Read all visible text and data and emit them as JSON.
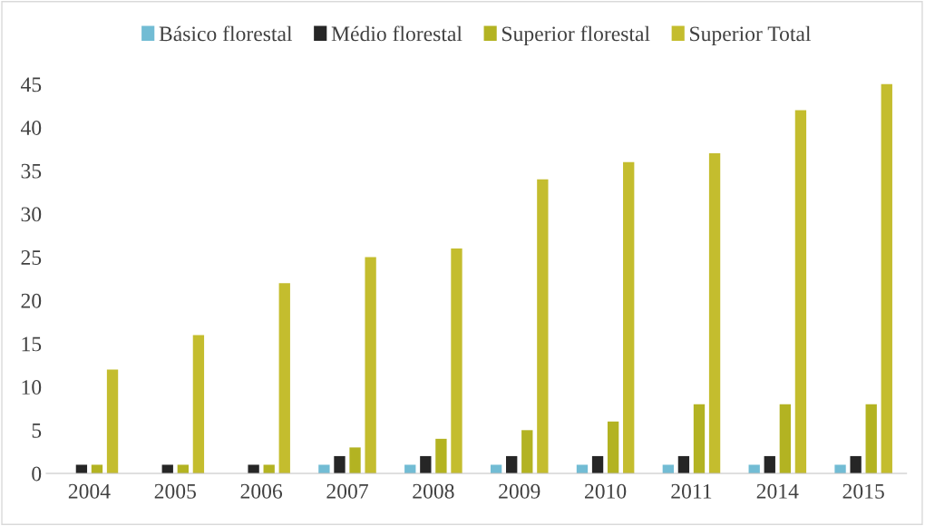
{
  "chart_data": {
    "type": "bar",
    "categories": [
      "2004",
      "2005",
      "2006",
      "2007",
      "2008",
      "2009",
      "2010",
      "2011",
      "2014",
      "2015"
    ],
    "series": [
      {
        "name": "Básico florestal",
        "color": "#72bcd4",
        "values": [
          0,
          0,
          0,
          1,
          1,
          1,
          1,
          1,
          1,
          1
        ]
      },
      {
        "name": "Médio florestal",
        "color": "#262626",
        "values": [
          1,
          1,
          1,
          2,
          2,
          2,
          2,
          2,
          2,
          2
        ]
      },
      {
        "name": "Superior florestal",
        "color": "#b3b322",
        "values": [
          1,
          1,
          1,
          3,
          4,
          5,
          6,
          8,
          8,
          8
        ]
      },
      {
        "name": "Superior Total",
        "color": "#c4bd2e",
        "values": [
          12,
          16,
          22,
          25,
          26,
          34,
          36,
          37,
          42,
          45
        ]
      }
    ],
    "ylim": [
      0,
      45
    ],
    "yticks": [
      0,
      5,
      10,
      15,
      20,
      25,
      30,
      35,
      40,
      45
    ],
    "grid": false,
    "legend": "top"
  }
}
